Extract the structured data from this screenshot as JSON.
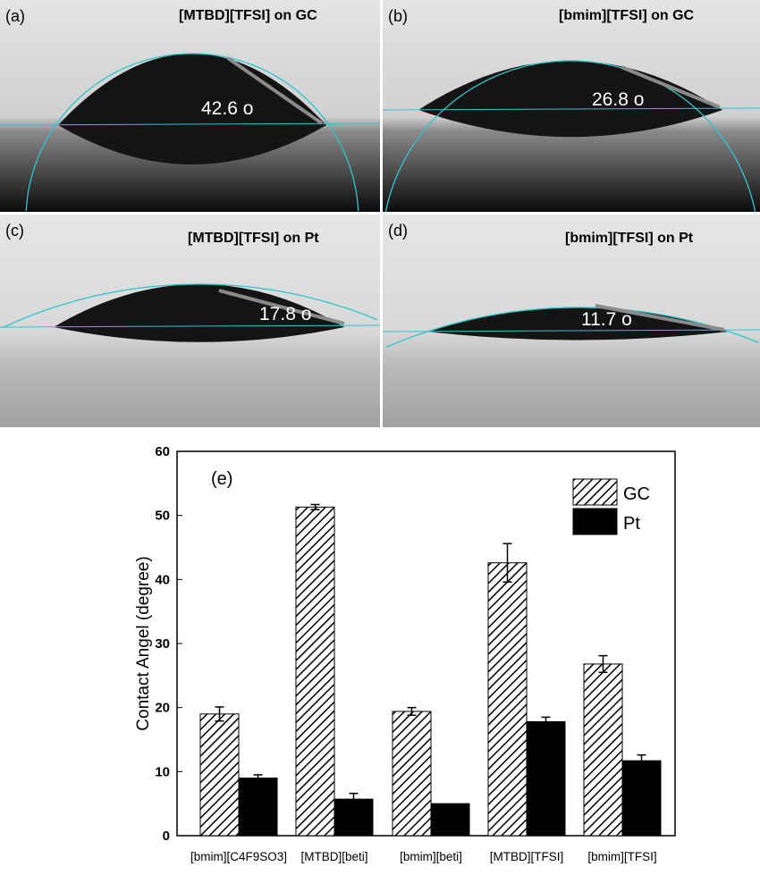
{
  "panels": [
    {
      "tag": "(a)",
      "title": "[MTBD][TFSI] on GC",
      "angle_label": "42.6 o",
      "angle": 42.6,
      "substrate": "GC"
    },
    {
      "tag": "(b)",
      "title": "[bmim][TFSI] on GC",
      "angle_label": "26.8 o",
      "angle": 26.8,
      "substrate": "GC"
    },
    {
      "tag": "(c)",
      "title": "[MTBD][TFSI] on Pt",
      "angle_label": "17.8 o",
      "angle": 17.8,
      "substrate": "Pt"
    },
    {
      "tag": "(d)",
      "title": "[bmim][TFSI] on Pt",
      "angle_label": "11.7 o",
      "angle": 11.7,
      "substrate": "Pt"
    }
  ],
  "colors": {
    "fit_line": "#2fc4d0",
    "tangent": "#8a8a8a",
    "drop": "#141414"
  },
  "chart_data": {
    "type": "bar",
    "panel_tag": "(e)",
    "ylabel": "Contact Angel (degree)",
    "xlabel": "",
    "ylim": [
      0,
      60
    ],
    "yticks": [
      0,
      10,
      20,
      30,
      40,
      50,
      60
    ],
    "categories": [
      "[bmim][C4F9SO3]",
      "[MTBD][beti]",
      "[bmim][beti]",
      "[MTBD][TFSI]",
      "[bmim][TFSI]"
    ],
    "series": [
      {
        "name": "GC",
        "fill": "hatched",
        "values": [
          19.0,
          51.3,
          19.4,
          42.6,
          26.8
        ],
        "errors": [
          1.1,
          0.4,
          0.6,
          3.0,
          1.3
        ]
      },
      {
        "name": "Pt",
        "fill": "#000000",
        "values": [
          9.0,
          5.7,
          5.0,
          17.8,
          11.7
        ],
        "errors": [
          0.5,
          0.9,
          0,
          0.7,
          0.9
        ]
      }
    ],
    "legend": "top-right",
    "grid": false
  }
}
